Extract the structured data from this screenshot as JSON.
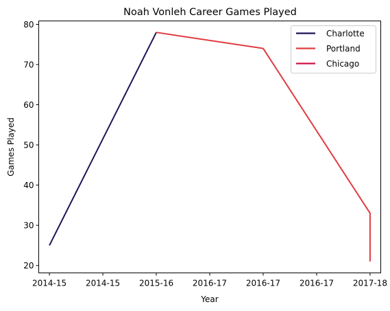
{
  "chart_data": {
    "type": "line",
    "title": "Noah Vonleh Career Games Played",
    "xlabel": "Year",
    "ylabel": "Games Played",
    "x_tick_labels": [
      "2014-15",
      "2014-15",
      "2015-16",
      "2016-17",
      "2016-17",
      "2016-17",
      "2017-18"
    ],
    "y_ticks": [
      20,
      30,
      40,
      50,
      60,
      70,
      80
    ],
    "xlim": [
      -0.2,
      6.2
    ],
    "ylim": [
      18.15,
      80.85
    ],
    "grid": false,
    "legend_position": "top-right",
    "series": [
      {
        "name": "Charlotte",
        "color": "#1f1157",
        "points": [
          {
            "x": 0,
            "y": 25
          },
          {
            "x": 2,
            "y": 78
          }
        ]
      },
      {
        "name": "Portland",
        "color": "#e03a3e",
        "points": [
          {
            "x": 2,
            "y": 78
          },
          {
            "x": 4,
            "y": 74
          },
          {
            "x": 6,
            "y": 33
          },
          {
            "x": 6,
            "y": 21
          }
        ]
      },
      {
        "name": "Chicago",
        "color": "#ce1141",
        "points": []
      }
    ]
  }
}
